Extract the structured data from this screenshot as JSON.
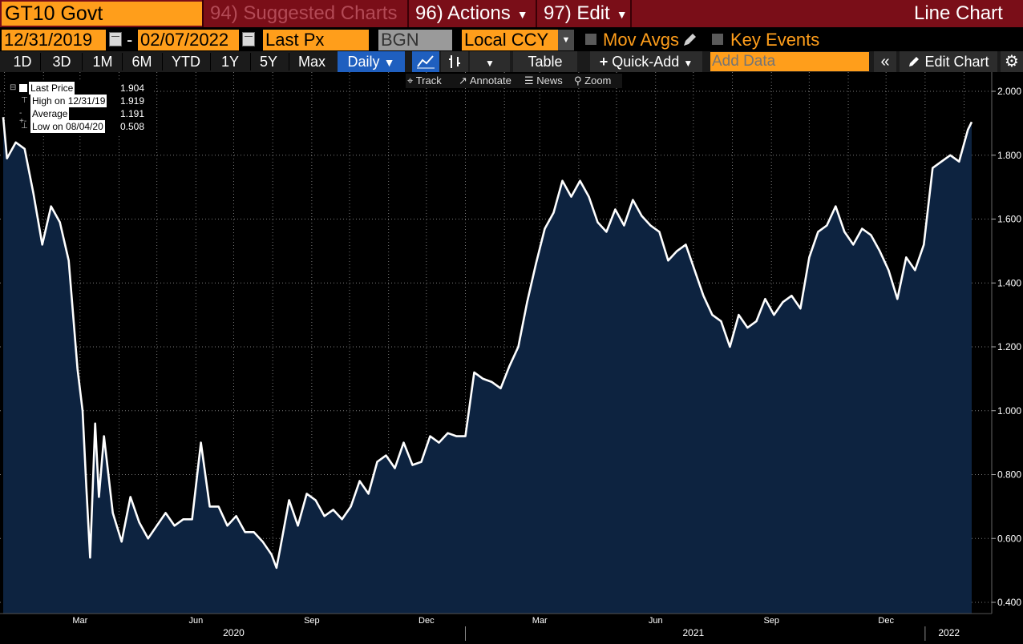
{
  "header": {
    "ticker": "GT10 Govt",
    "menus": [
      {
        "num": "94)",
        "label": "Suggested Charts"
      },
      {
        "num": "96)",
        "label": "Actions"
      },
      {
        "num": "97)",
        "label": "Edit"
      }
    ],
    "chart_title": "Line Chart"
  },
  "controls": {
    "start_date": "12/31/2019",
    "dash": "-",
    "end_date": "02/07/2022",
    "field": "Last Px",
    "source": "BGN",
    "currency": "Local CCY",
    "mov_avgs": "Mov Avgs",
    "key_events": "Key Events"
  },
  "toolbar": {
    "ranges": [
      "1D",
      "3D",
      "1M",
      "6M",
      "YTD",
      "1Y",
      "5Y",
      "Max"
    ],
    "frequency": "Daily",
    "table": "Table",
    "quick_add": "Quick-Add",
    "add_data_placeholder": "Add Data",
    "edit_chart": "Edit Chart"
  },
  "chart_tools": {
    "track": "Track",
    "annotate": "Annotate",
    "news": "News",
    "zoom": "Zoom"
  },
  "legend": {
    "last_price_label": "Last Price",
    "last_price_value": "1.904",
    "high_label": "High on 12/31/19",
    "high_value": "1.919",
    "average_label": "Average",
    "average_value": "1.191",
    "low_label": "Low on 08/04/20",
    "low_value": "0.508"
  },
  "colors": {
    "line": "#ffffff",
    "area": "#0d2340",
    "accent": "#ff9e1b",
    "header": "#7a0e18",
    "selected": "#1f5fbf"
  },
  "chart_data": {
    "type": "area",
    "title": "",
    "ylim": [
      0.4,
      2.0
    ],
    "yticks": [
      "2.000",
      "1.800",
      "1.600",
      "1.400",
      "1.200",
      "1.000",
      "0.800",
      "0.600",
      "0.400"
    ],
    "xtick_labels": [
      "Mar",
      "Jun",
      "Sep",
      "Dec",
      "Mar",
      "Jun",
      "Sep",
      "Dec"
    ],
    "year_labels": [
      "2020",
      "2021",
      "2022"
    ],
    "grid": true,
    "series": [
      {
        "x": [
          "2019-12-31",
          "2020-01-03",
          "2020-01-10",
          "2020-01-17",
          "2020-01-24",
          "2020-01-31",
          "2020-02-07",
          "2020-02-14",
          "2020-02-21",
          "2020-02-28",
          "2020-03-03",
          "2020-03-06",
          "2020-03-09",
          "2020-03-13",
          "2020-03-16",
          "2020-03-20",
          "2020-03-27",
          "2020-04-03",
          "2020-04-10",
          "2020-04-17",
          "2020-04-24",
          "2020-05-01",
          "2020-05-08",
          "2020-05-15",
          "2020-05-22",
          "2020-05-29",
          "2020-06-05",
          "2020-06-12",
          "2020-06-19",
          "2020-06-26",
          "2020-07-03",
          "2020-07-10",
          "2020-07-17",
          "2020-07-24",
          "2020-07-31",
          "2020-08-04",
          "2020-08-07",
          "2020-08-14",
          "2020-08-21",
          "2020-08-28",
          "2020-09-04",
          "2020-09-11",
          "2020-09-18",
          "2020-09-25",
          "2020-10-02",
          "2020-10-09",
          "2020-10-16",
          "2020-10-23",
          "2020-10-30",
          "2020-11-06",
          "2020-11-13",
          "2020-11-20",
          "2020-11-27",
          "2020-12-04",
          "2020-12-11",
          "2020-12-18",
          "2020-12-25",
          "2021-01-01",
          "2021-01-08",
          "2021-01-15",
          "2021-01-22",
          "2021-01-29",
          "2021-02-05",
          "2021-02-12",
          "2021-02-19",
          "2021-02-26",
          "2021-03-05",
          "2021-03-12",
          "2021-03-19",
          "2021-03-26",
          "2021-04-02",
          "2021-04-09",
          "2021-04-16",
          "2021-04-23",
          "2021-04-30",
          "2021-05-07",
          "2021-05-14",
          "2021-05-21",
          "2021-05-28",
          "2021-06-04",
          "2021-06-11",
          "2021-06-18",
          "2021-06-25",
          "2021-07-02",
          "2021-07-09",
          "2021-07-16",
          "2021-07-23",
          "2021-07-30",
          "2021-08-06",
          "2021-08-13",
          "2021-08-20",
          "2021-08-27",
          "2021-09-03",
          "2021-09-10",
          "2021-09-17",
          "2021-09-24",
          "2021-10-01",
          "2021-10-08",
          "2021-10-15",
          "2021-10-22",
          "2021-10-29",
          "2021-11-05",
          "2021-11-12",
          "2021-11-19",
          "2021-11-26",
          "2021-12-03",
          "2021-12-10",
          "2021-12-17",
          "2021-12-24",
          "2021-12-31",
          "2022-01-07",
          "2022-01-14",
          "2022-01-21",
          "2022-01-28",
          "2022-02-04",
          "2022-02-07"
        ],
        "y": [
          1.919,
          1.79,
          1.84,
          1.82,
          1.68,
          1.52,
          1.64,
          1.59,
          1.47,
          1.13,
          1.0,
          0.76,
          0.54,
          0.96,
          0.73,
          0.92,
          0.68,
          0.59,
          0.73,
          0.65,
          0.6,
          0.64,
          0.68,
          0.64,
          0.66,
          0.66,
          0.9,
          0.7,
          0.7,
          0.64,
          0.67,
          0.62,
          0.62,
          0.59,
          0.55,
          0.508,
          0.57,
          0.72,
          0.64,
          0.74,
          0.72,
          0.67,
          0.69,
          0.66,
          0.7,
          0.78,
          0.74,
          0.84,
          0.86,
          0.82,
          0.9,
          0.83,
          0.84,
          0.92,
          0.9,
          0.93,
          0.92,
          0.92,
          1.12,
          1.1,
          1.09,
          1.07,
          1.14,
          1.2,
          1.34,
          1.46,
          1.57,
          1.62,
          1.72,
          1.67,
          1.72,
          1.67,
          1.59,
          1.56,
          1.63,
          1.58,
          1.66,
          1.61,
          1.58,
          1.56,
          1.47,
          1.5,
          1.52,
          1.44,
          1.36,
          1.3,
          1.28,
          1.2,
          1.3,
          1.26,
          1.28,
          1.35,
          1.3,
          1.34,
          1.36,
          1.32,
          1.48,
          1.56,
          1.58,
          1.64,
          1.56,
          1.52,
          1.57,
          1.55,
          1.5,
          1.44,
          1.35,
          1.48,
          1.44,
          1.52,
          1.76,
          1.78,
          1.8,
          1.78,
          1.88,
          1.904
        ]
      }
    ]
  }
}
